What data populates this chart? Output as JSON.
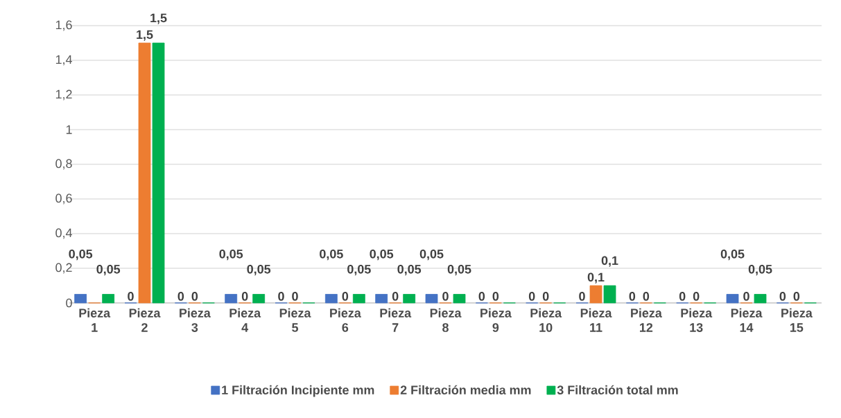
{
  "chart_data": {
    "type": "bar",
    "categories": [
      "Pieza 1",
      "Pieza 2",
      "Pieza 3",
      "Pieza 4",
      "Pieza 5",
      "Pieza 6",
      "Pieza 7",
      "Pieza 8",
      "Pieza 9",
      "Pieza 10",
      "Pieza 11",
      "Pieza 12",
      "Pieza 13",
      "Pieza 14",
      "Pieza 15"
    ],
    "series": [
      {
        "name": "1 Filtración Incipiente mm",
        "color": "#4472c4",
        "values": [
          0.05,
          0,
          0,
          0.05,
          0,
          0.05,
          0.05,
          0.05,
          0,
          0,
          0,
          0,
          0,
          0.05,
          0
        ],
        "value_labels": [
          "0,05",
          "0",
          "0",
          "0,05",
          "0",
          "0,05",
          "0,05",
          "0,05",
          "0",
          "0",
          "0",
          "0",
          "0",
          "0,05",
          "0"
        ]
      },
      {
        "name": "2 Filtración media mm",
        "color": "#ed7d31",
        "values": [
          0,
          1.5,
          0,
          0,
          0,
          0,
          0,
          0,
          0,
          0,
          0.1,
          0,
          0,
          0,
          0
        ],
        "value_labels": [
          null,
          "1,5",
          "0",
          "0",
          "0",
          "0",
          "0",
          "0",
          "0",
          "0",
          "0,1",
          "0",
          "0",
          "0",
          "0"
        ]
      },
      {
        "name": "3 Filtración total mm",
        "color": "#00b050",
        "values": [
          0.05,
          1.5,
          0,
          0.05,
          0,
          0.05,
          0.05,
          0.05,
          0,
          0,
          0.1,
          0,
          0,
          0.05,
          0
        ],
        "value_labels": [
          "0,05",
          "1,5",
          null,
          "0,05",
          null,
          "0,05",
          "0,05",
          "0,05",
          null,
          null,
          "0,1",
          null,
          null,
          "0,05",
          null
        ]
      }
    ],
    "ylim": [
      0,
      1.6
    ],
    "yticks": [
      {
        "value": 0,
        "label": "0"
      },
      {
        "value": 0.2,
        "label": "0,2"
      },
      {
        "value": 0.4,
        "label": "0,4"
      },
      {
        "value": 0.6,
        "label": "0,6"
      },
      {
        "value": 0.8,
        "label": "0,8"
      },
      {
        "value": 1,
        "label": "1"
      },
      {
        "value": 1.2,
        "label": "1,2"
      },
      {
        "value": 1.4,
        "label": "1,4"
      },
      {
        "value": 1.6,
        "label": "1,6"
      }
    ],
    "grid": "y",
    "legend": "bottom"
  }
}
